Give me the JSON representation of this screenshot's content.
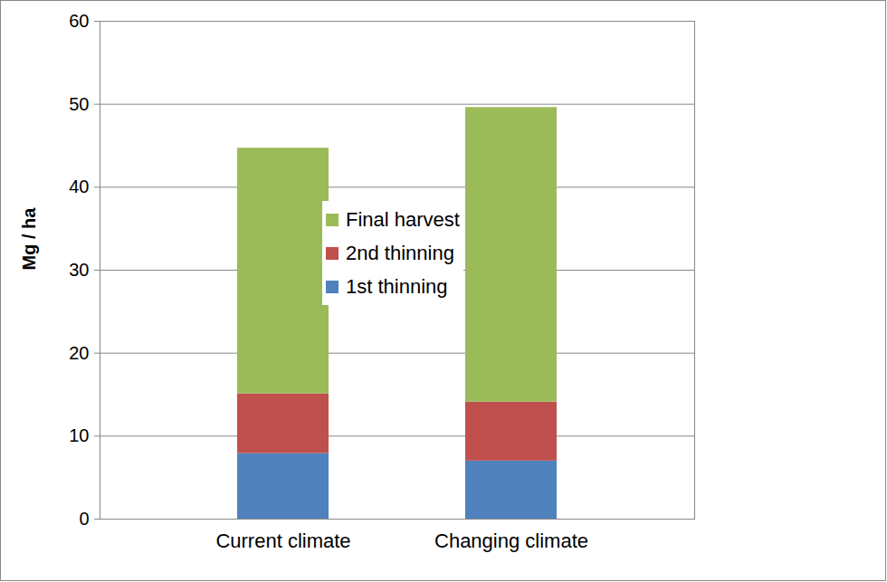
{
  "chart_data": {
    "type": "bar",
    "stacked": true,
    "categories": [
      "Current climate",
      "Changing climate"
    ],
    "series": [
      {
        "name": "1st thinning",
        "color": "#4F81BD",
        "values": [
          7.9,
          7.0
        ]
      },
      {
        "name": "2nd thinning",
        "color": "#C0504D",
        "values": [
          7.2,
          7.1
        ]
      },
      {
        "name": "Final harvest",
        "color": "#9BBB59",
        "values": [
          29.6,
          35.5
        ]
      }
    ],
    "y_label": "Mg / ha",
    "ylim": [
      0,
      60
    ],
    "yticks": [
      0,
      10,
      20,
      30,
      40,
      50,
      60
    ],
    "grid": true,
    "legend": "center"
  }
}
